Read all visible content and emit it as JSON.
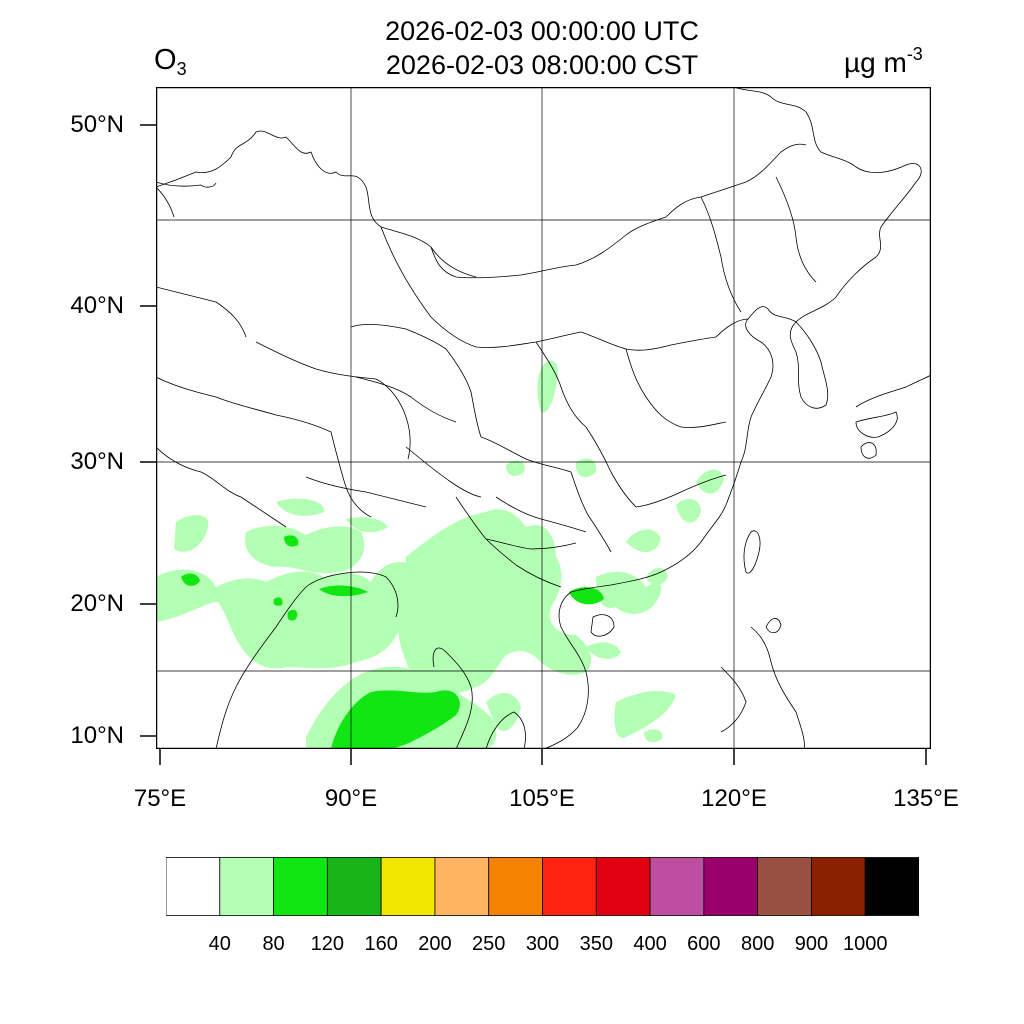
{
  "header": {
    "utc_time": "2026-02-03 00:00:00 UTC",
    "local_time": "2026-02-03 08:00:00 CST",
    "species_base": "O",
    "species_sub": "3",
    "units_base": "µg m",
    "units_sup": "-3"
  },
  "map": {
    "latitude_labels": [
      "50°N",
      "40°N",
      "30°N",
      "20°N",
      "10°N"
    ],
    "longitude_labels": [
      "75°E",
      "90°E",
      "105°E",
      "120°E",
      "135°E"
    ],
    "colors": {
      "land_outline": "#000000",
      "grid": "#000000",
      "shade_40_80": "#b3ffb3",
      "shade_80_120": "#12e612"
    }
  },
  "legend": {
    "colors": [
      "#ffffff",
      "#b3ffb3",
      "#12e612",
      "#18b418",
      "#f2e600",
      "#ffb463",
      "#f58200",
      "#ff2310",
      "#df0010",
      "#bd4fa0",
      "#9b006a",
      "#9a5040",
      "#8a2000",
      "#000000"
    ],
    "labels": [
      "40",
      "80",
      "120",
      "160",
      "200",
      "250",
      "300",
      "350",
      "400",
      "600",
      "800",
      "900",
      "1000"
    ]
  }
}
